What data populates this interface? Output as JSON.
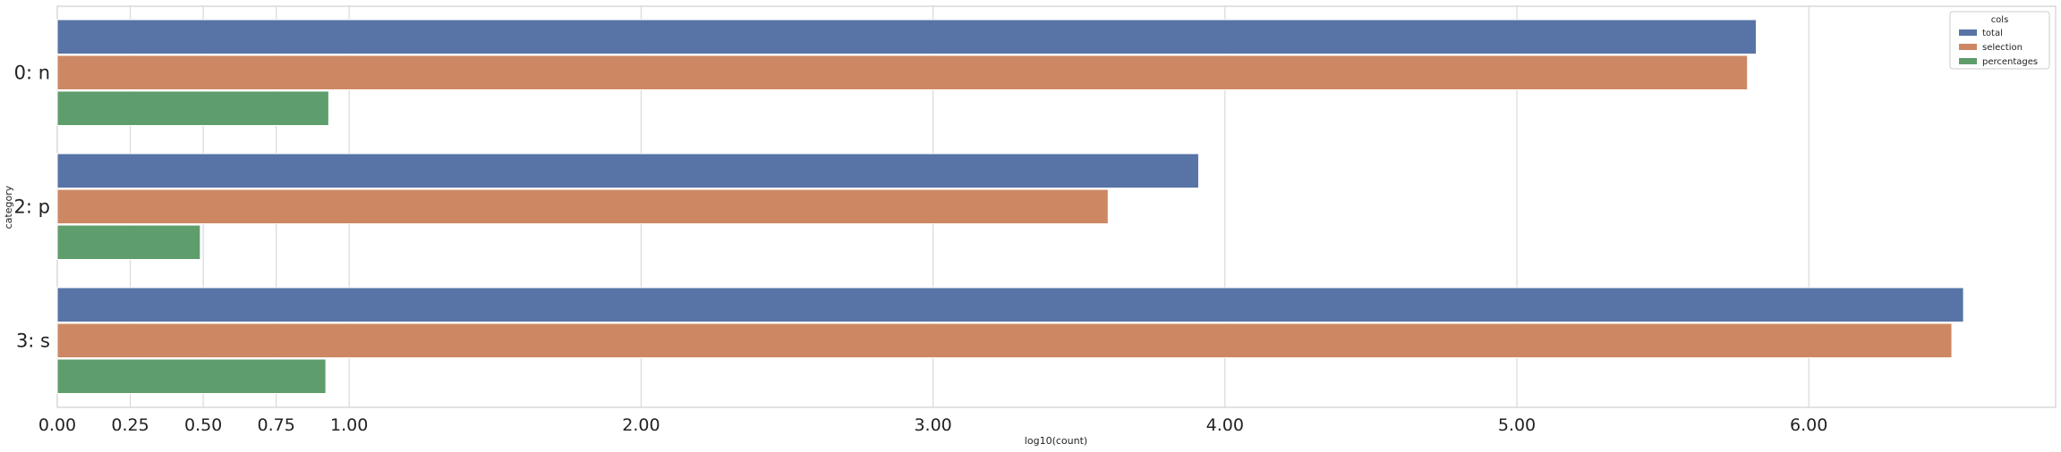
{
  "chart_data": {
    "type": "bar",
    "orientation": "horizontal",
    "categories": [
      "0: n",
      "2: p",
      "3: s"
    ],
    "series": [
      {
        "name": "total",
        "values": [
          5.82,
          3.91,
          6.53
        ],
        "color": "#5874a6"
      },
      {
        "name": "selection",
        "values": [
          5.79,
          3.6,
          6.49
        ],
        "color": "#cd8863"
      },
      {
        "name": "percentages",
        "values": [
          0.93,
          0.49,
          0.92
        ],
        "color": "#5e9e6c"
      }
    ],
    "xlabel": "log10(count)",
    "ylabel": "category",
    "xlim": [
      0,
      6.85
    ],
    "xticks": [
      0.0,
      0.25,
      0.5,
      0.75,
      1.0,
      2.0,
      3.0,
      4.0,
      5.0,
      6.0
    ],
    "xtick_labels": [
      "0.00",
      "0.25",
      "0.50",
      "0.75",
      "1.00",
      "2.00",
      "3.00",
      "4.00",
      "5.00",
      "6.00"
    ],
    "grid": "vertical",
    "legend": {
      "title": "cols",
      "placement": "top-right"
    }
  }
}
